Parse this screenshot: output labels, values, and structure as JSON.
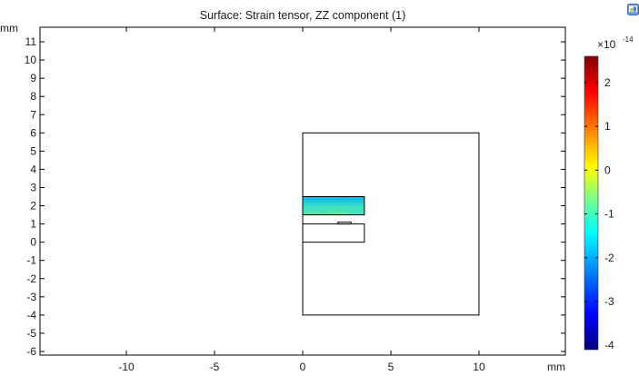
{
  "chart_data": {
    "type": "heatmap",
    "title": "Surface: Strain tensor, ZZ component (1)",
    "x_unit": "mm",
    "y_unit": "mm",
    "xlim": [
      -14.9,
      14.9
    ],
    "ylim": [
      -6.2,
      11.8
    ],
    "x_ticks": [
      -10,
      -5,
      0,
      5,
      10
    ],
    "y_ticks": [
      -6,
      -5,
      -4,
      -3,
      -2,
      -1,
      0,
      1,
      2,
      3,
      4,
      5,
      6,
      7,
      8,
      9,
      10,
      11
    ],
    "grid": false,
    "geometry": [
      {
        "name": "outer-domain",
        "x0": 0,
        "y0": -4,
        "x1": 10,
        "y1": 6
      },
      {
        "name": "lower-block",
        "x0": 0,
        "y0": 0,
        "x1": 3.5,
        "y1": 1
      },
      {
        "name": "contact-pad",
        "x0": 2,
        "y0": 1,
        "x1": 2.75,
        "y1": 1.1
      },
      {
        "name": "upper-block",
        "x0": 0,
        "y0": 1.5,
        "x1": 3.5,
        "y1": 2.5
      }
    ],
    "surface_region": {
      "x0": 0,
      "y0": 1.5,
      "x1": 3.5,
      "y1": 2.5
    },
    "colorbar": {
      "exponent": "×10",
      "exponent_power": "-14",
      "min": -4.1,
      "max": 2.6,
      "ticks": [
        2,
        1,
        0,
        -1,
        -2,
        -3,
        -4
      ],
      "colormap": [
        "#00007f",
        "#0000ff",
        "#00a0ff",
        "#00ffff",
        "#80ff80",
        "#ffff00",
        "#ff8000",
        "#ff0000",
        "#7f0000"
      ]
    }
  },
  "toolbar": {
    "export_icon": "image-export-icon"
  }
}
